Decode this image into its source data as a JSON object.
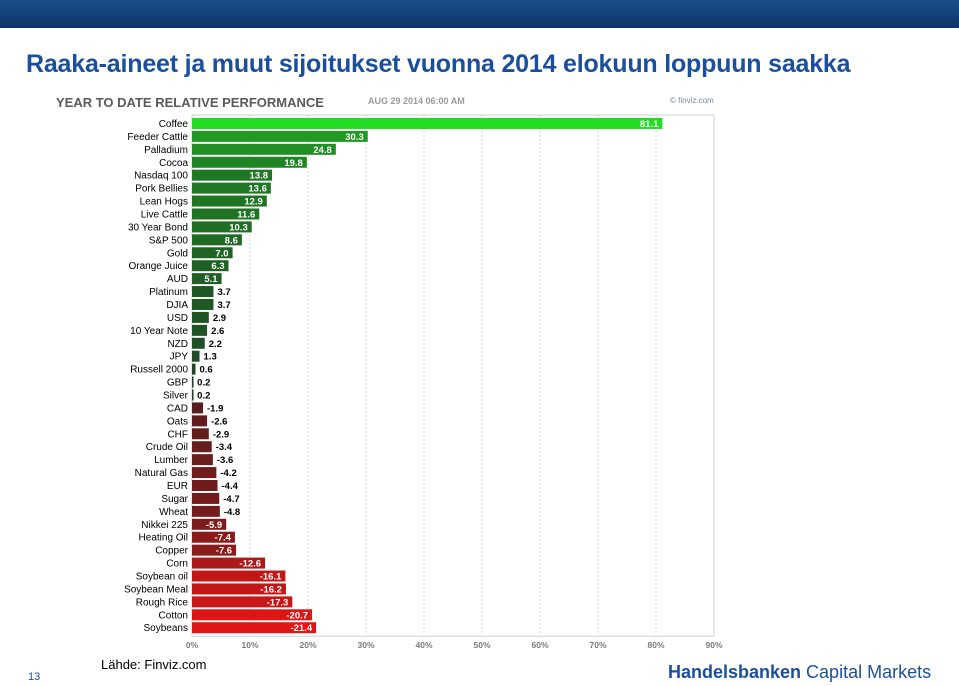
{
  "page": {
    "title": "Raaka-aineet ja muut sijoitukset vuonna 2014 elokuun loppuun saakka",
    "page_number": "13",
    "source": "Lähde: Finviz.com",
    "logo_bold": "Handelsbanken",
    "logo_regular": " Capital Markets"
  },
  "colors": {
    "header_bar": "#0d3466",
    "title": "#1b4f9c",
    "positive_max": "#22dd22",
    "positive_low": "#1f3a26",
    "negative_low": "#3a2020",
    "negative_max": "#e01515"
  },
  "chart_data": {
    "type": "bar",
    "orientation": "horizontal",
    "title": "YEAR TO DATE RELATIVE PERFORMANCE",
    "subtitle": "AUG 29 2014 06:00 AM",
    "brand": "© finviz.com",
    "xlim": [
      0,
      90
    ],
    "xticks": [
      "0%",
      "10%",
      "20%",
      "30%",
      "40%",
      "50%",
      "60%",
      "70%",
      "80%",
      "90%"
    ],
    "grid": true,
    "categories": [
      "Coffee",
      "Feeder Cattle",
      "Palladium",
      "Cocoa",
      "Nasdaq 100",
      "Pork Bellies",
      "Lean Hogs",
      "Live Cattle",
      "30 Year Bond",
      "S&P 500",
      "Gold",
      "Orange Juice",
      "AUD",
      "Platinum",
      "DJIA",
      "USD",
      "10 Year Note",
      "NZD",
      "JPY",
      "Russell 2000",
      "GBP",
      "Silver",
      "CAD",
      "Oats",
      "CHF",
      "Crude Oil",
      "Lumber",
      "Natural Gas",
      "EUR",
      "Sugar",
      "Wheat",
      "Nikkei 225",
      "Heating Oil",
      "Copper",
      "Corn",
      "Soybean oil",
      "Soybean Meal",
      "Rough Rice",
      "Cotton",
      "Soybeans"
    ],
    "values": [
      81.1,
      30.3,
      24.8,
      19.8,
      13.8,
      13.6,
      12.9,
      11.6,
      10.3,
      8.6,
      7.0,
      6.3,
      5.1,
      3.7,
      3.7,
      2.9,
      2.6,
      2.2,
      1.3,
      0.6,
      0.2,
      0.2,
      -1.9,
      -2.6,
      -2.9,
      -3.4,
      -3.6,
      -4.2,
      -4.4,
      -4.7,
      -4.8,
      -5.9,
      -7.4,
      -7.6,
      -12.6,
      -16.1,
      -16.2,
      -17.3,
      -20.7,
      -21.4
    ],
    "value_labels": [
      "81.1",
      "30.3",
      "24.8",
      "19.8",
      "13.8",
      "13.6",
      "12.9",
      "11.6",
      "10.3",
      "8.6",
      "7.0",
      "6.3",
      "5.1",
      "3.7",
      "3.7",
      "2.9",
      "2.6",
      "2.2",
      "1.3",
      "0.6",
      "0.2",
      "0.2",
      "-1.9",
      "-2.6",
      "-2.9",
      "-3.4",
      "-3.6",
      "-4.2",
      "-4.4",
      "-4.7",
      "-4.8",
      "-5.9",
      "-7.4",
      "-7.6",
      "-12.6",
      "-16.1",
      "-16.2",
      "-17.3",
      "-20.7",
      "-21.4"
    ],
    "bar_length": "absolute value"
  }
}
